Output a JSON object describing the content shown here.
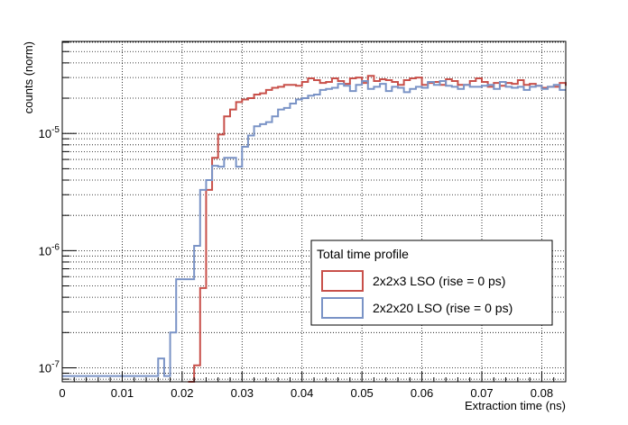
{
  "chart_data": {
    "type": "line",
    "title": "",
    "xlabel": "Extraction time (ns)",
    "ylabel": "counts (norm)",
    "xlim": [
      0,
      0.084
    ],
    "ylim": [
      7.6e-08,
      6.1e-05
    ],
    "yscale": "log",
    "grid": true,
    "x_ticks": [
      0,
      0.01,
      0.02,
      0.03,
      0.04,
      0.05,
      0.06,
      0.07,
      0.08
    ],
    "x_tick_labels": [
      "0",
      "0.01",
      "0.02",
      "0.03",
      "0.04",
      "0.05",
      "0.06",
      "0.07",
      "0.08"
    ],
    "y_ticks": [
      {
        "base": "10",
        "exp": "-7",
        "value": 1e-07
      },
      {
        "base": "10",
        "exp": "-6",
        "value": 1e-06
      },
      {
        "base": "10",
        "exp": "-5",
        "value": 1e-05
      }
    ],
    "legend": {
      "title": "Total time profile",
      "placement": "lower-right",
      "entries": [
        "2x2x3 LSO (rise = 0 ps)",
        "2x2x20 LSO (rise = 0 ps)"
      ]
    },
    "bin_width": 0.001,
    "series": [
      {
        "name": "2x2x3 LSO (rise = 0 ps)",
        "color": "#c8504a",
        "bin_start": 0.021,
        "values": [
          7.6e-08,
          1.05e-07,
          4.8e-07,
          3.3e-06,
          6.2e-06,
          9.8e-06,
          1.4e-05,
          1.6e-05,
          1.85e-05,
          1.95e-05,
          2e-05,
          2.15e-05,
          2.2e-05,
          2.35e-05,
          2.45e-05,
          2.5e-05,
          2.6e-05,
          2.6e-05,
          2.55e-05,
          2.75e-05,
          2.95e-05,
          2.85e-05,
          2.7e-05,
          2.75e-05,
          2.95e-05,
          2.8e-05,
          2.65e-05,
          2.95e-05,
          3e-05,
          2.7e-05,
          3.1e-05,
          2.8e-05,
          2.9e-05,
          2.85e-05,
          2.75e-05,
          2.6e-05,
          2.85e-05,
          2.95e-05,
          3e-05,
          2.6e-05,
          2.7e-05,
          2.75e-05,
          2.6e-05,
          2.9e-05,
          2.8e-05,
          2.6e-05,
          2.6e-05,
          2.8e-05,
          2.95e-05,
          2.75e-05,
          2.5e-05,
          2.7e-05,
          2.55e-05,
          2.7e-05,
          2.65e-05,
          2.85e-05,
          2.6e-05,
          2.65e-05,
          2.55e-05,
          2.45e-05,
          2.5e-05,
          2.5e-05,
          2.7e-05,
          2.55e-05
        ]
      },
      {
        "name": "2x2x20 LSO (rise = 0 ps)",
        "color": "#7a93c6",
        "bin_start": 0.0,
        "values": [
          8.5e-08,
          8.5e-08,
          8.5e-08,
          8.5e-08,
          8.5e-08,
          8.5e-08,
          8.5e-08,
          8.5e-08,
          8.5e-08,
          8.5e-08,
          8.5e-08,
          8.5e-08,
          8.5e-08,
          8.5e-08,
          8.5e-08,
          8.5e-08,
          1.2e-07,
          8.5e-08,
          2e-07,
          5.7e-07,
          5.7e-07,
          5.7e-07,
          1.1e-06,
          3.3e-06,
          4e-06,
          5.3e-06,
          5.2e-06,
          6.2e-06,
          6.2e-06,
          5.2e-06,
          7.7e-06,
          9.6e-06,
          1.15e-05,
          1.2e-05,
          1.25e-05,
          1.4e-05,
          1.6e-05,
          1.65e-05,
          1.8e-05,
          1.95e-05,
          2e-05,
          2.1e-05,
          2.15e-05,
          2.35e-05,
          2.4e-05,
          2.45e-05,
          2.65e-05,
          2.55e-05,
          2.3e-05,
          2.6e-05,
          2.8e-05,
          2.4e-05,
          2.5e-05,
          2.65e-05,
          2.3e-05,
          2.5e-05,
          2.45e-05,
          2.25e-05,
          2.4e-05,
          2.5e-05,
          2.45e-05,
          2.75e-05,
          2.6e-05,
          2.8e-05,
          2.55e-05,
          2.5e-05,
          2.4e-05,
          2.6e-05,
          2.5e-05,
          2.5e-05,
          2.55e-05,
          2.6e-05,
          2.4e-05,
          2.75e-05,
          2.5e-05,
          2.45e-05,
          2.5e-05,
          2.35e-05,
          2.5e-05,
          2.55e-05,
          2.4e-05,
          2.5e-05,
          2.6e-05,
          2.35e-05
        ]
      }
    ]
  }
}
